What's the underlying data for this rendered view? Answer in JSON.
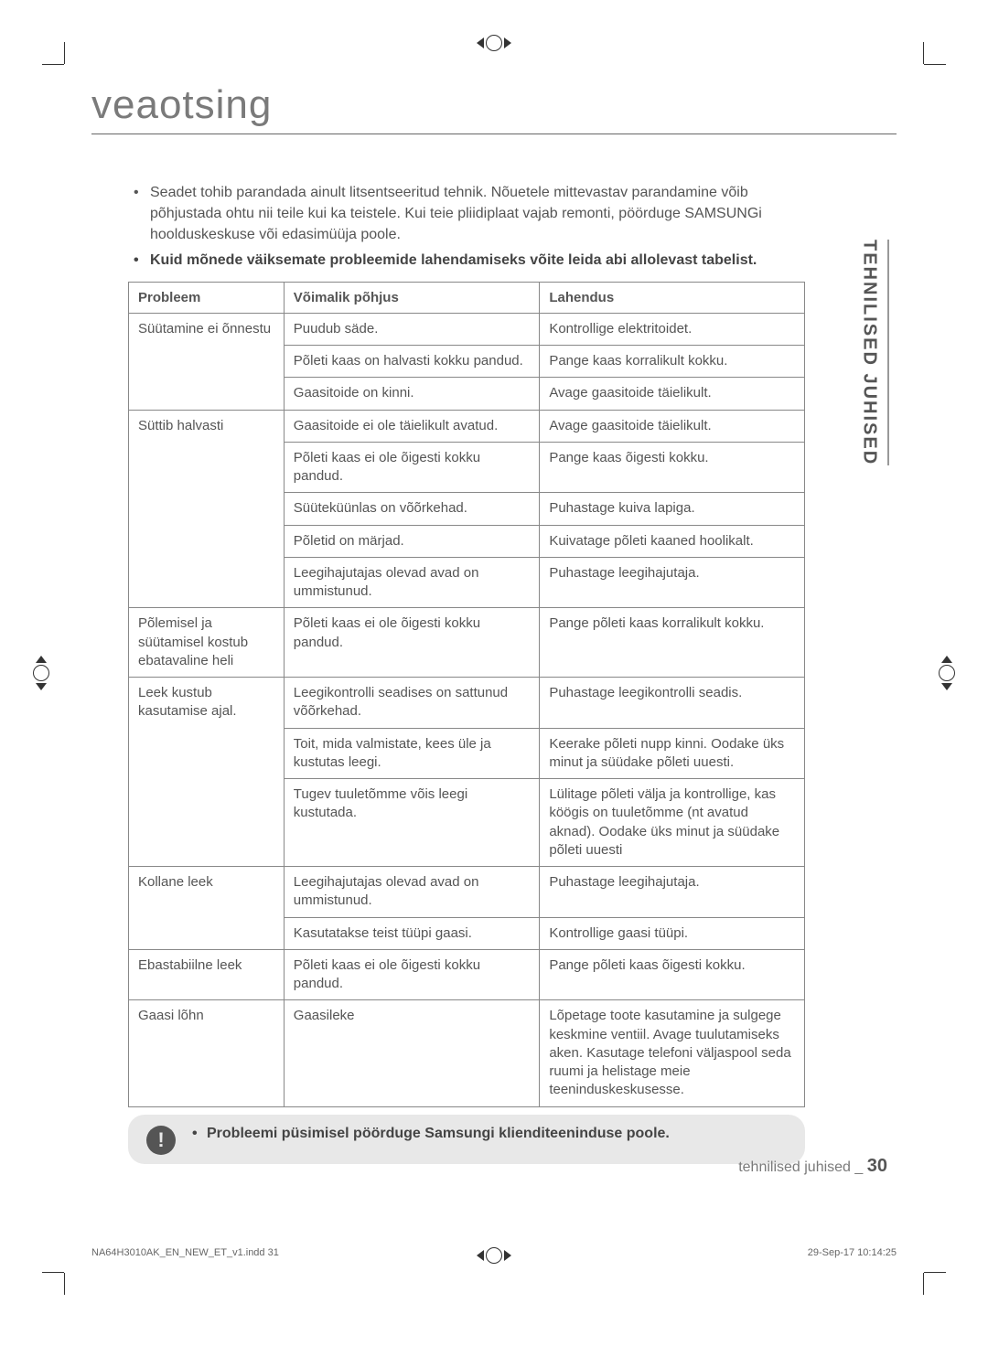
{
  "heading": "veaotsing",
  "intro": {
    "bullets": [
      {
        "text": "Seadet tohib parandada ainult litsentseeritud tehnik. Nõuetele mittevastav parandamine võib põhjustada ohtu nii teile kui ka teistele. Kui teie pliidiplaat vajab remonti, pöörduge SAMSUNGi hoolduskeskuse või edasimüüja poole.",
        "bold": false
      },
      {
        "text": "Kuid mõnede väiksemate probleemide lahendamiseks võite leida abi allolevast tabelist.",
        "bold": true
      }
    ]
  },
  "sideTab": "TEHNILISED JUHISED",
  "table": {
    "headers": {
      "problem": "Probleem",
      "cause": "Võimalik põhjus",
      "solution": "Lahendus"
    },
    "groups": [
      {
        "problem": "Süütamine ei õnnestu",
        "rows": [
          {
            "cause": "Puudub säde.",
            "solution": "Kontrollige elektritoidet."
          },
          {
            "cause": "Põleti kaas on halvasti kokku pandud.",
            "solution": "Pange kaas korralikult kokku."
          },
          {
            "cause": "Gaasitoide on kinni.",
            "solution": "Avage gaasitoide täielikult."
          }
        ]
      },
      {
        "problem": "Süttib halvasti",
        "rows": [
          {
            "cause": "Gaasitoide ei ole täielikult avatud.",
            "solution": "Avage gaasitoide täielikult."
          },
          {
            "cause": "Põleti kaas ei ole õigesti kokku pandud.",
            "solution": "Pange kaas õigesti kokku."
          },
          {
            "cause": "Süüteküünlas on võõrkehad.",
            "solution": "Puhastage kuiva lapiga."
          },
          {
            "cause": "Põletid on märjad.",
            "solution": "Kuivatage põleti kaaned hoolikalt."
          },
          {
            "cause": "Leegihajutajas olevad avad on ummistunud.",
            "solution": "Puhastage leegihajutaja."
          }
        ]
      },
      {
        "problem": "Põlemisel ja süütamisel kostub ebatavaline heli",
        "rows": [
          {
            "cause": "Põleti kaas ei ole õigesti kokku pandud.",
            "solution": "Pange põleti kaas korralikult kokku."
          }
        ]
      },
      {
        "problem": "Leek kustub kasutamise ajal.",
        "rows": [
          {
            "cause": "Leegikontrolli seadises on sattunud võõrkehad.",
            "solution": "Puhastage leegikontrolli seadis."
          },
          {
            "cause": "Toit, mida valmistate, kees üle ja kustutas leegi.",
            "solution": "Keerake põleti nupp kinni. Oodake üks minut ja süüdake põleti uuesti."
          },
          {
            "cause": "Tugev tuuletõmme võis leegi kustutada.",
            "solution": "Lülitage põleti välja ja kontrollige, kas köögis on tuuletõmme (nt avatud aknad). Oodake üks minut ja süüdake põleti uuesti"
          }
        ]
      },
      {
        "problem": "Kollane leek",
        "rows": [
          {
            "cause": "Leegihajutajas olevad avad on ummistunud.",
            "solution": "Puhastage leegihajutaja."
          },
          {
            "cause": "Kasutatakse teist tüüpi gaasi.",
            "solution": "Kontrollige gaasi tüüpi."
          }
        ]
      },
      {
        "problem": "Ebastabiilne leek",
        "rows": [
          {
            "cause": "Põleti kaas ei ole õigesti kokku pandud.",
            "solution": "Pange põleti kaas õigesti kokku."
          }
        ]
      },
      {
        "problem": "Gaasi lõhn",
        "rows": [
          {
            "cause": "Gaasileke",
            "solution": "Lõpetage toote kasutamine ja sulgege keskmine ventiil. Avage tuulutamiseks aken. Kasutage telefoni väljaspool seda ruumi ja helistage meie teeninduskeskusesse."
          }
        ]
      }
    ]
  },
  "noteBox": {
    "iconGlyph": "!",
    "text": "Probleemi püsimisel pöörduge Samsungi klienditeeninduse poole."
  },
  "pageFooter": {
    "label": "tehnilised juhised _ ",
    "pageNumber": "30"
  },
  "printFooter": {
    "left": "NA64H3010AK_EN_NEW_ET_v1.indd   31",
    "right": "29-Sep-17   10:14:25"
  },
  "colors": {
    "background": "#ffffff",
    "text": "#4a4a4a",
    "headingText": "#7a7a7a",
    "border": "#888888",
    "noteBg": "#e8e8e8",
    "noteIconBg": "#555555"
  }
}
